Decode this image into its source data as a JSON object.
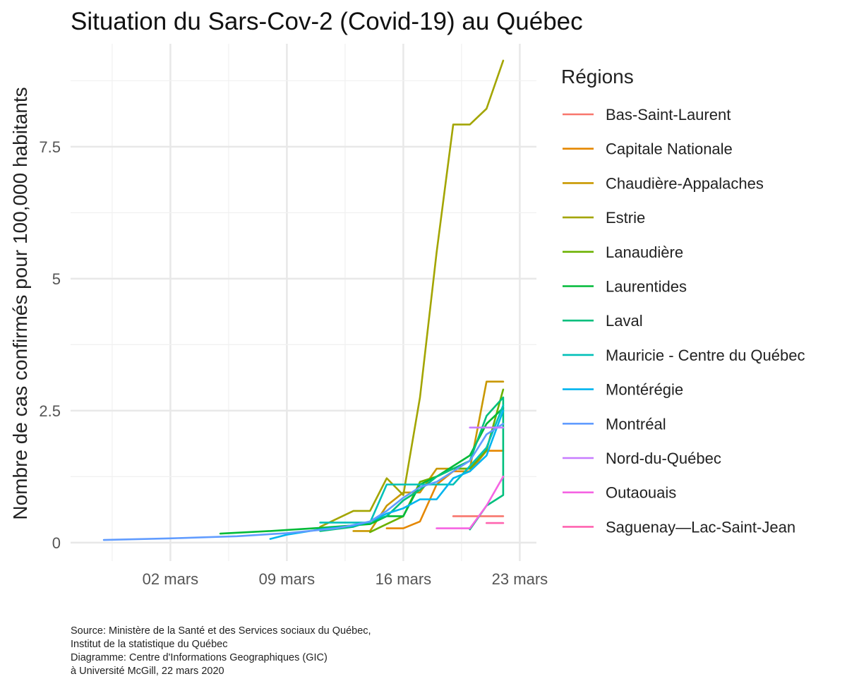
{
  "chart_data": {
    "type": "line",
    "title": "Situation du Sars-Cov-2 (Covid-19) au Québec",
    "xlabel": "",
    "ylabel": "Nombre de cas confirmés pour 100,000 habitants",
    "x_unit": "date (2020)",
    "xlim": [
      "2020-02-25",
      "2020-03-24"
    ],
    "ylim": [
      -0.35,
      9.45
    ],
    "x_ticks": [
      {
        "date": "2020-03-02",
        "label": "02 mars"
      },
      {
        "date": "2020-03-09",
        "label": "09 mars"
      },
      {
        "date": "2020-03-16",
        "label": "16 mars"
      },
      {
        "date": "2020-03-23",
        "label": "23 mars"
      }
    ],
    "y_ticks": [
      {
        "value": 0,
        "label": "0"
      },
      {
        "value": 2.5,
        "label": "2.5"
      },
      {
        "value": 5,
        "label": "5"
      },
      {
        "value": 7.5,
        "label": "7.5"
      }
    ],
    "grid": true,
    "legend_title": "Régions",
    "legend_position": "right",
    "series": [
      {
        "name": "Bas-Saint-Laurent",
        "color": "#F8766D",
        "points": [
          [
            "2020-03-19",
            0.5
          ],
          [
            "2020-03-22",
            0.5
          ]
        ]
      },
      {
        "name": "Capitale Nationale",
        "color": "#E58700",
        "points": [
          [
            "2020-03-15",
            0.27
          ],
          [
            "2020-03-16",
            0.27
          ],
          [
            "2020-03-17",
            0.4
          ],
          [
            "2020-03-18",
            1.1
          ],
          [
            "2020-03-19",
            1.35
          ],
          [
            "2020-03-20",
            1.35
          ],
          [
            "2020-03-21",
            1.74
          ],
          [
            "2020-03-22",
            1.74
          ]
        ]
      },
      {
        "name": "Chaudière-Appalaches",
        "color": "#C99800",
        "points": [
          [
            "2020-03-13",
            0.22
          ],
          [
            "2020-03-14",
            0.22
          ],
          [
            "2020-03-15",
            0.7
          ],
          [
            "2020-03-16",
            0.95
          ],
          [
            "2020-03-17",
            0.95
          ],
          [
            "2020-03-18",
            1.4
          ],
          [
            "2020-03-19",
            1.4
          ],
          [
            "2020-03-20",
            1.4
          ],
          [
            "2020-03-21",
            3.05
          ],
          [
            "2020-03-22",
            3.05
          ]
        ]
      },
      {
        "name": "Estrie",
        "color": "#A3A500",
        "points": [
          [
            "2020-03-11",
            0.3
          ],
          [
            "2020-03-12",
            0.45
          ],
          [
            "2020-03-13",
            0.6
          ],
          [
            "2020-03-14",
            0.6
          ],
          [
            "2020-03-15",
            1.22
          ],
          [
            "2020-03-16",
            0.9
          ],
          [
            "2020-03-17",
            2.75
          ],
          [
            "2020-03-18",
            5.5
          ],
          [
            "2020-03-19",
            7.92
          ],
          [
            "2020-03-20",
            7.92
          ],
          [
            "2020-03-21",
            8.22
          ],
          [
            "2020-03-22",
            9.13
          ]
        ]
      },
      {
        "name": "Lanaudière",
        "color": "#6BB100",
        "points": [
          [
            "2020-03-14",
            0.2
          ],
          [
            "2020-03-15",
            0.35
          ],
          [
            "2020-03-16",
            0.5
          ],
          [
            "2020-03-17",
            1.15
          ],
          [
            "2020-03-18",
            1.25
          ],
          [
            "2020-03-19",
            1.4
          ],
          [
            "2020-03-20",
            1.4
          ],
          [
            "2020-03-21",
            1.75
          ],
          [
            "2020-03-22",
            2.9
          ]
        ]
      },
      {
        "name": "Laurentides",
        "color": "#00BA38",
        "points": [
          [
            "2020-03-05",
            0.17
          ],
          [
            "2020-03-08",
            0.22
          ],
          [
            "2020-03-11",
            0.28
          ],
          [
            "2020-03-14",
            0.35
          ],
          [
            "2020-03-15",
            0.5
          ],
          [
            "2020-03-16",
            0.5
          ],
          [
            "2020-03-17",
            1.1
          ],
          [
            "2020-03-18",
            1.25
          ],
          [
            "2020-03-19",
            1.45
          ],
          [
            "2020-03-20",
            1.65
          ],
          [
            "2020-03-21",
            2.25
          ],
          [
            "2020-03-22",
            2.55
          ]
        ]
      },
      {
        "name": "Laval",
        "color": "#00BF7D",
        "points": [
          [
            "2020-03-11",
            0.22
          ],
          [
            "2020-03-13",
            0.3
          ],
          [
            "2020-03-15",
            0.5
          ],
          [
            "2020-03-16",
            0.8
          ],
          [
            "2020-03-17",
            1.0
          ],
          [
            "2020-03-18",
            1.25
          ],
          [
            "2020-03-19",
            1.4
          ],
          [
            "2020-03-20",
            1.55
          ],
          [
            "2020-03-21",
            2.4
          ],
          [
            "2020-03-22",
            2.75
          ],
          [
            "2020-03-22",
            0.9
          ],
          [
            "2020-03-21",
            0.7
          ],
          [
            "2020-03-20",
            0.25
          ]
        ]
      },
      {
        "name": "Mauricie - Centre du Québec",
        "color": "#00C0B8",
        "points": [
          [
            "2020-03-11",
            0.38
          ],
          [
            "2020-03-14",
            0.38
          ],
          [
            "2020-03-15",
            1.1
          ],
          [
            "2020-03-18",
            1.1
          ],
          [
            "2020-03-19",
            1.1
          ],
          [
            "2020-03-20",
            1.45
          ],
          [
            "2020-03-21",
            1.8
          ],
          [
            "2020-03-22",
            2.6
          ]
        ]
      },
      {
        "name": "Montérégie",
        "color": "#00B4EF",
        "points": [
          [
            "2020-03-08",
            0.07
          ],
          [
            "2020-03-09",
            0.15
          ],
          [
            "2020-03-11",
            0.25
          ],
          [
            "2020-03-13",
            0.32
          ],
          [
            "2020-03-14",
            0.4
          ],
          [
            "2020-03-15",
            0.55
          ],
          [
            "2020-03-16",
            0.65
          ],
          [
            "2020-03-17",
            0.82
          ],
          [
            "2020-03-18",
            0.82
          ],
          [
            "2020-03-19",
            1.22
          ],
          [
            "2020-03-20",
            1.35
          ],
          [
            "2020-03-21",
            1.65
          ],
          [
            "2020-03-22",
            2.5
          ]
        ]
      },
      {
        "name": "Montréal",
        "color": "#619CFF",
        "points": [
          [
            "2020-02-27",
            0.05
          ],
          [
            "2020-03-02",
            0.08
          ],
          [
            "2020-03-06",
            0.12
          ],
          [
            "2020-03-09",
            0.18
          ],
          [
            "2020-03-12",
            0.27
          ],
          [
            "2020-03-14",
            0.4
          ],
          [
            "2020-03-15",
            0.6
          ],
          [
            "2020-03-16",
            0.85
          ],
          [
            "2020-03-17",
            1.05
          ],
          [
            "2020-03-18",
            1.15
          ],
          [
            "2020-03-19",
            1.35
          ],
          [
            "2020-03-20",
            1.55
          ],
          [
            "2020-03-21",
            2.05
          ],
          [
            "2020-03-22",
            2.25
          ]
        ]
      },
      {
        "name": "Nord-du-Québec",
        "color": "#C77CFF",
        "points": [
          [
            "2020-03-20",
            2.18
          ],
          [
            "2020-03-22",
            2.18
          ]
        ]
      },
      {
        "name": "Outaouais",
        "color": "#F564E3",
        "points": [
          [
            "2020-03-18",
            0.27
          ],
          [
            "2020-03-19",
            0.27
          ],
          [
            "2020-03-20",
            0.27
          ],
          [
            "2020-03-21",
            0.7
          ],
          [
            "2020-03-22",
            1.25
          ]
        ]
      },
      {
        "name": "Saguenay—Lac-Saint-Jean",
        "color": "#FF64B0",
        "points": [
          [
            "2020-03-21",
            0.37
          ],
          [
            "2020-03-22",
            0.37
          ]
        ]
      }
    ]
  },
  "caption": {
    "lines": [
      "Source: Ministère de la Santé et des Services sociaux du Québec,",
      "Institut de la statistique du Québec",
      "Diagramme: Centre d'Informations Geographiques (GIC)",
      "à Université McGill, 22 mars 2020"
    ]
  }
}
